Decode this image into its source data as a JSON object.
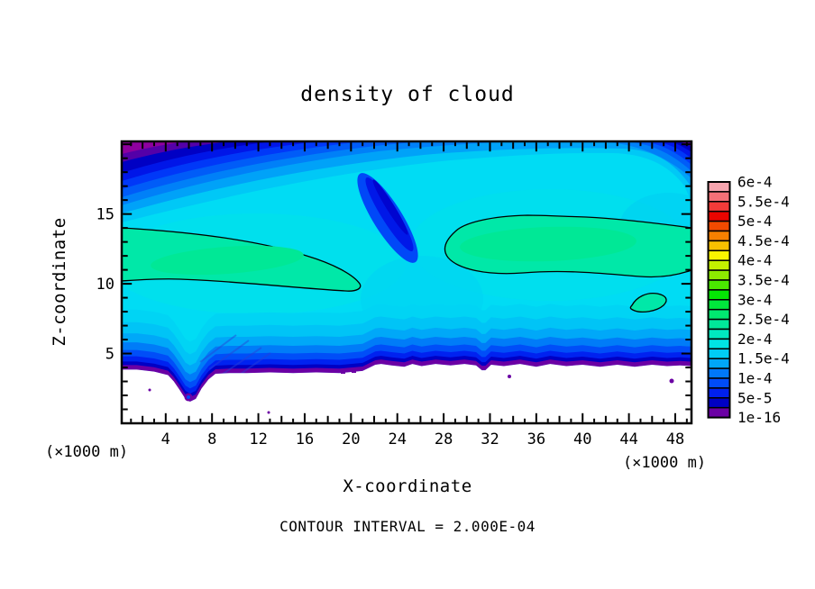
{
  "chart_data": {
    "type": "heatmap",
    "variant": "filled_contour_cross_section",
    "title": "density of cloud",
    "xlabel": "X-coordinate",
    "ylabel": "Z-coordinate",
    "axis_unit_note": "(×1000 m)",
    "footer_note": "CONTOUR INTERVAL = 2.000E-04",
    "contour_interval": 0.0002,
    "contour_line_level": 0.0002,
    "x_axis": {
      "range": [
        0.2,
        49.4
      ],
      "major_ticks": [
        4,
        8,
        12,
        16,
        20,
        24,
        28,
        32,
        36,
        40,
        44,
        48
      ],
      "minor_step": 1,
      "medium_step": 2
    },
    "z_axis": {
      "range": [
        0,
        20.2
      ],
      "major_ticks": [
        5,
        10,
        15
      ],
      "minor_step": 1
    },
    "colorbar": {
      "labels_top_to_bottom": [
        "6e-4",
        "5.5e-4",
        "5e-4",
        "4.5e-4",
        "4e-4",
        "3.5e-4",
        "3e-4",
        "2.5e-4",
        "2e-4",
        "1.5e-4",
        "1e-4",
        "5e-5",
        "1e-16"
      ],
      "cell_colors_top_to_bottom": [
        "#F6A4AE",
        "#F57077",
        "#F33B39",
        "#EA0500",
        "#F14A00",
        "#F68000",
        "#F8C000",
        "#F9F400",
        "#C4F000",
        "#8CEA00",
        "#4AE800",
        "#04E604",
        "#00E83C",
        "#00E870",
        "#00E89A",
        "#00E8C0",
        "#00E4E4",
        "#00CCF4",
        "#00A6F8",
        "#0078F8",
        "#004CF8",
        "#0020EE",
        "#0000C4",
        "#6B00A4"
      ]
    },
    "regions_at_or_above_2e-4": [
      {
        "shape": "lens",
        "x_range": [
          0.2,
          20.8
        ],
        "z_range": [
          10.0,
          13.9
        ],
        "touches": "west edge"
      },
      {
        "shape": "elongated band",
        "x_range": [
          28.0,
          49.4
        ],
        "z_range": [
          10.5,
          14.9
        ],
        "touches": "east edge"
      },
      {
        "shape": "small closed cell",
        "x_range": [
          44.0,
          47.4
        ],
        "z_range": [
          7.9,
          9.6
        ]
      }
    ],
    "minima_features": [
      {
        "where": "top-left corner",
        "value_band": "1e-16 to 5e-5"
      },
      {
        "where": "top-right corner",
        "value_band": "1e-16 to 5e-5"
      },
      {
        "where": "thin layer along surface",
        "value_band": "1e-16 to 5e-5"
      },
      {
        "where": "blue tongue descending near x=21-27, z=12-20"
      }
    ],
    "surface_profile": {
      "x": [
        0.2,
        1.5,
        3.0,
        4.2,
        4.7,
        5.2,
        5.7,
        6.1,
        6.6,
        7.1,
        7.7,
        8.3,
        9.5,
        11,
        13,
        15,
        17,
        19,
        21,
        22.1,
        22.6,
        23.5,
        24.6,
        25.3,
        26.1,
        27.3,
        28.6,
        29.8,
        30.8,
        31.3,
        31.6,
        32.1,
        33.2,
        34.6,
        36.0,
        37.2,
        38.6,
        40.0,
        41.5,
        43.0,
        44.5,
        46.0,
        47.3,
        48.4,
        49.4
      ],
      "z": [
        3.85,
        3.85,
        3.7,
        3.45,
        3.0,
        2.4,
        1.75,
        1.55,
        1.75,
        2.5,
        3.15,
        3.55,
        3.6,
        3.6,
        3.65,
        3.6,
        3.65,
        3.6,
        3.75,
        4.2,
        4.25,
        4.15,
        4.05,
        4.25,
        4.1,
        4.25,
        4.15,
        4.25,
        4.15,
        3.8,
        3.8,
        4.2,
        4.1,
        4.25,
        4.05,
        4.25,
        4.1,
        4.2,
        4.05,
        4.2,
        4.05,
        4.2,
        4.1,
        4.15,
        4.1
      ]
    },
    "near_surface_bands_above_terrain": [
      {
        "color": "#00D4F4",
        "top_offset": 4.3
      },
      {
        "color": "#00C4F6",
        "top_offset": 3.4
      },
      {
        "color": "#00A8F8",
        "top_offset": 2.6
      },
      {
        "color": "#007CF8",
        "top_offset": 1.95
      },
      {
        "color": "#004EF8",
        "top_offset": 1.4
      },
      {
        "color": "#0022F0",
        "top_offset": 0.95
      },
      {
        "color": "#0000C4",
        "top_offset": 0.58
      },
      {
        "color": "#6B00A4",
        "top_offset": 0.32
      }
    ]
  }
}
